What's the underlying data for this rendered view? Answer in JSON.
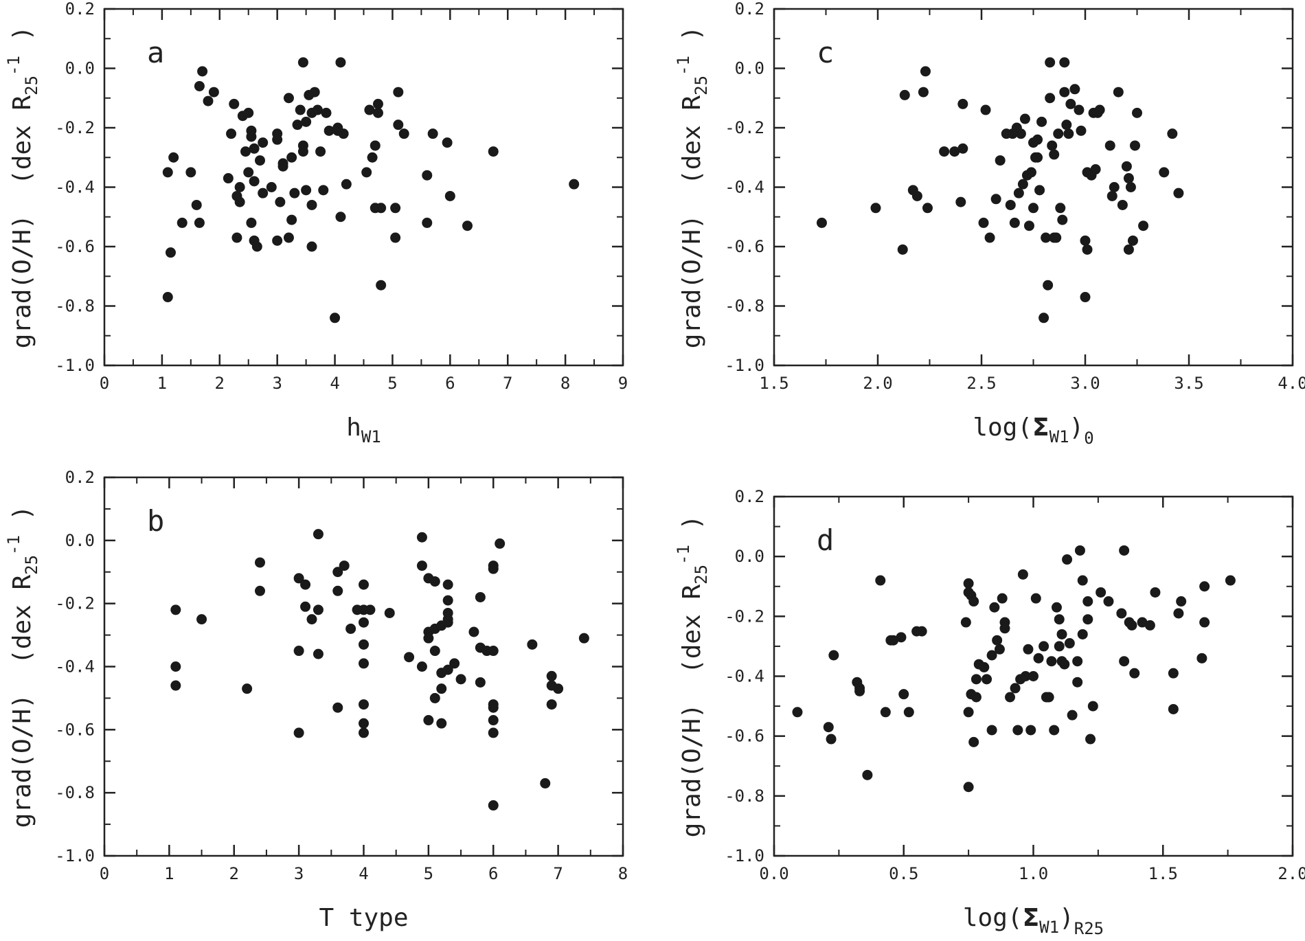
{
  "chart_data": [
    {
      "type": "scatter",
      "panel_label": "a",
      "xlabel": "h",
      "xlabel_sub": "W1",
      "xlabel_close": "",
      "xlabel_outer_sub": "",
      "ylabel": "grad(O/H)  (dex R",
      "ylabel_sub": "25",
      "ylabel_sup": "-1",
      "ylabel_close": ")",
      "xlim": [
        0,
        9
      ],
      "ylim": [
        -1.0,
        0.2
      ],
      "xticks": [
        0,
        1,
        2,
        3,
        4,
        5,
        6,
        7,
        8,
        9
      ],
      "xtick_labels": [
        "0",
        "1",
        "2",
        "3",
        "4",
        "5",
        "6",
        "7",
        "8",
        "9"
      ],
      "yticks": [
        -1.0,
        -0.8,
        -0.6,
        -0.4,
        -0.2,
        0.0,
        0.2
      ],
      "ytick_labels": [
        "-1.0",
        "-0.8",
        "-0.6",
        "-0.4",
        "-0.2",
        "0.0",
        "0.2"
      ],
      "x": [
        1.1,
        1.2,
        1.15,
        1.1,
        1.5,
        1.35,
        1.65,
        1.6,
        1.65,
        1.7,
        1.8,
        1.9,
        2.15,
        2.2,
        2.25,
        2.3,
        2.3,
        2.35,
        2.35,
        2.4,
        2.45,
        2.5,
        2.5,
        2.55,
        2.55,
        2.55,
        2.6,
        2.6,
        2.6,
        2.65,
        2.7,
        2.75,
        2.75,
        2.9,
        3.0,
        3.0,
        3.0,
        3.05,
        3.1,
        3.1,
        3.2,
        3.2,
        3.25,
        3.25,
        3.3,
        3.35,
        3.4,
        3.45,
        3.45,
        3.45,
        3.5,
        3.5,
        3.55,
        3.6,
        3.6,
        3.6,
        3.65,
        3.7,
        3.75,
        3.8,
        3.85,
        3.9,
        4.0,
        4.05,
        4.1,
        4.1,
        4.15,
        4.2,
        4.55,
        4.6,
        4.65,
        4.7,
        4.7,
        4.75,
        4.75,
        4.8,
        4.8,
        5.05,
        5.05,
        5.1,
        5.1,
        5.2,
        5.6,
        5.6,
        5.7,
        5.95,
        6.0,
        6.3,
        6.75,
        8.15,
        4.05
      ],
      "y": [
        -0.35,
        -0.3,
        -0.62,
        -0.77,
        -0.35,
        -0.52,
        -0.06,
        -0.46,
        -0.52,
        -0.01,
        -0.11,
        -0.08,
        -0.37,
        -0.22,
        -0.12,
        -0.57,
        -0.43,
        -0.45,
        -0.4,
        -0.16,
        -0.28,
        -0.15,
        -0.35,
        -0.52,
        -0.21,
        -0.23,
        -0.27,
        -0.38,
        -0.58,
        -0.6,
        -0.31,
        -0.42,
        -0.25,
        -0.4,
        -0.22,
        -0.24,
        -0.58,
        -0.45,
        -0.33,
        -0.32,
        -0.57,
        -0.1,
        -0.51,
        -0.3,
        -0.42,
        -0.19,
        -0.14,
        0.02,
        -0.26,
        -0.28,
        -0.41,
        -0.18,
        -0.09,
        -0.6,
        -0.46,
        -0.15,
        -0.08,
        -0.14,
        -0.28,
        -0.41,
        -0.15,
        -0.21,
        -0.84,
        -0.21,
        0.02,
        -0.5,
        -0.22,
        -0.39,
        -0.35,
        -0.14,
        -0.3,
        -0.26,
        -0.47,
        -0.12,
        -0.15,
        -0.73,
        -0.47,
        -0.57,
        -0.47,
        -0.19,
        -0.08,
        -0.22,
        -0.36,
        -0.52,
        -0.22,
        -0.25,
        -0.43,
        -0.53,
        -0.28,
        -0.39,
        -0.2
      ]
    },
    {
      "type": "scatter",
      "panel_label": "b",
      "xlabel": "T type",
      "xlabel_sub": "",
      "xlabel_close": "",
      "xlabel_outer_sub": "",
      "ylabel": "grad(O/H)  (dex R",
      "ylabel_sub": "25",
      "ylabel_sup": "-1",
      "ylabel_close": ")",
      "xlim": [
        0,
        8
      ],
      "ylim": [
        -1.0,
        0.2
      ],
      "xticks": [
        0,
        1,
        2,
        3,
        4,
        5,
        6,
        7,
        8
      ],
      "xtick_labels": [
        "0",
        "1",
        "2",
        "3",
        "4",
        "5",
        "6",
        "7",
        "8"
      ],
      "yticks": [
        -1.0,
        -0.8,
        -0.6,
        -0.4,
        -0.2,
        0.0,
        0.2
      ],
      "ytick_labels": [
        "-1.0",
        "-0.8",
        "-0.6",
        "-0.4",
        "-0.2",
        "0.0",
        "0.2"
      ],
      "x": [
        1.1,
        1.1,
        1.1,
        1.5,
        2.2,
        2.4,
        2.4,
        3.0,
        3.0,
        3.0,
        3.1,
        3.1,
        3.2,
        3.3,
        3.3,
        3.3,
        3.6,
        3.6,
        3.6,
        3.7,
        3.8,
        3.9,
        4.0,
        4.0,
        4.0,
        4.0,
        4.0,
        4.0,
        4.0,
        4.0,
        4.1,
        4.4,
        4.7,
        4.9,
        4.9,
        4.9,
        5.0,
        5.0,
        5.0,
        5.0,
        5.1,
        5.1,
        5.1,
        5.1,
        5.2,
        5.2,
        5.2,
        5.2,
        5.3,
        5.3,
        5.3,
        5.3,
        5.3,
        5.3,
        5.4,
        5.5,
        5.7,
        5.8,
        5.8,
        5.8,
        5.9,
        6.0,
        6.0,
        6.0,
        6.0,
        6.0,
        6.0,
        6.0,
        6.0,
        6.1,
        6.6,
        6.8,
        6.9,
        6.9,
        6.9,
        7.0,
        7.4
      ],
      "y": [
        -0.22,
        -0.4,
        -0.46,
        -0.25,
        -0.47,
        -0.07,
        -0.16,
        -0.12,
        -0.35,
        -0.61,
        -0.14,
        -0.21,
        -0.25,
        0.02,
        -0.22,
        -0.36,
        -0.16,
        -0.53,
        -0.1,
        -0.08,
        -0.28,
        -0.22,
        -0.14,
        -0.22,
        -0.26,
        -0.33,
        -0.39,
        -0.52,
        -0.58,
        -0.61,
        -0.22,
        -0.23,
        -0.37,
        0.01,
        -0.08,
        -0.4,
        -0.12,
        -0.29,
        -0.31,
        -0.57,
        -0.13,
        -0.28,
        -0.35,
        -0.5,
        -0.27,
        -0.42,
        -0.47,
        -0.58,
        -0.14,
        -0.19,
        -0.23,
        -0.25,
        -0.26,
        -0.41,
        -0.39,
        -0.44,
        -0.29,
        -0.18,
        -0.34,
        -0.45,
        -0.35,
        -0.08,
        -0.09,
        -0.52,
        -0.53,
        -0.57,
        -0.61,
        -0.35,
        -0.84,
        -0.01,
        -0.33,
        -0.77,
        -0.43,
        -0.46,
        -0.52,
        -0.47,
        -0.31
      ]
    },
    {
      "type": "scatter",
      "panel_label": "c",
      "xlabel": "log(",
      "xlabel_sub": "W1",
      "xlabel_close": ")",
      "xlabel_outer_sub": "0",
      "ylabel": "grad(O/H)  (dex R",
      "ylabel_sub": "25",
      "ylabel_sup": "-1",
      "ylabel_close": ")",
      "xlim": [
        1.5,
        4.0
      ],
      "ylim": [
        -1.0,
        0.2
      ],
      "xticks": [
        1.5,
        2.0,
        2.5,
        3.0,
        3.5,
        4.0
      ],
      "xtick_labels": [
        "1.5",
        "2.0",
        "2.5",
        "3.0",
        "3.5",
        "4.0"
      ],
      "yticks": [
        -1.0,
        -0.8,
        -0.6,
        -0.4,
        -0.2,
        0.0,
        0.2
      ],
      "ytick_labels": [
        "-1.0",
        "-0.8",
        "-0.6",
        "-0.4",
        "-0.2",
        "0.0",
        "0.2"
      ],
      "x": [
        1.73,
        1.99,
        2.12,
        2.13,
        2.17,
        2.19,
        2.22,
        2.23,
        2.24,
        2.32,
        2.37,
        2.4,
        2.41,
        2.41,
        2.51,
        2.52,
        2.54,
        2.57,
        2.59,
        2.62,
        2.64,
        2.65,
        2.66,
        2.67,
        2.68,
        2.69,
        2.7,
        2.71,
        2.72,
        2.73,
        2.74,
        2.75,
        2.75,
        2.76,
        2.77,
        2.77,
        2.78,
        2.79,
        2.8,
        2.81,
        2.82,
        2.83,
        2.83,
        2.84,
        2.85,
        2.85,
        2.86,
        2.87,
        2.88,
        2.89,
        2.9,
        2.9,
        2.91,
        2.92,
        2.93,
        2.95,
        2.97,
        2.98,
        3.0,
        3.0,
        3.01,
        3.01,
        3.03,
        3.04,
        3.05,
        3.06,
        3.07,
        3.12,
        3.13,
        3.14,
        3.16,
        3.18,
        3.2,
        3.21,
        3.21,
        3.22,
        3.23,
        3.24,
        3.25,
        3.28,
        3.38,
        3.42,
        3.45
      ],
      "y": [
        -0.52,
        -0.47,
        -0.61,
        -0.09,
        -0.41,
        -0.43,
        -0.08,
        -0.01,
        -0.47,
        -0.28,
        -0.28,
        -0.45,
        -0.12,
        -0.27,
        -0.52,
        -0.14,
        -0.57,
        -0.44,
        -0.31,
        -0.22,
        -0.46,
        -0.22,
        -0.52,
        -0.2,
        -0.42,
        -0.22,
        -0.39,
        -0.17,
        -0.36,
        -0.53,
        -0.35,
        -0.47,
        -0.25,
        -0.3,
        -0.24,
        -0.3,
        -0.41,
        -0.18,
        -0.84,
        -0.57,
        -0.73,
        0.02,
        -0.1,
        -0.26,
        -0.29,
        -0.57,
        -0.57,
        -0.22,
        -0.47,
        -0.51,
        -0.08,
        0.02,
        -0.19,
        -0.22,
        -0.12,
        -0.07,
        -0.14,
        -0.21,
        -0.58,
        -0.77,
        -0.61,
        -0.35,
        -0.36,
        -0.15,
        -0.34,
        -0.15,
        -0.14,
        -0.26,
        -0.43,
        -0.4,
        -0.08,
        -0.46,
        -0.33,
        -0.37,
        -0.61,
        -0.4,
        -0.58,
        -0.26,
        -0.15,
        -0.53,
        -0.35,
        -0.22,
        -0.42
      ]
    },
    {
      "type": "scatter",
      "panel_label": "d",
      "xlabel": "log(",
      "xlabel_sub": "W1",
      "xlabel_close": ")",
      "xlabel_outer_sub": "R25",
      "ylabel": "grad(O/H)  (dex R",
      "ylabel_sub": "25",
      "ylabel_sup": "-1",
      "ylabel_close": ")",
      "xlim": [
        0.0,
        2.0
      ],
      "ylim": [
        -1.0,
        0.2
      ],
      "xticks": [
        0.0,
        0.5,
        1.0,
        1.5,
        2.0
      ],
      "xtick_labels": [
        "0.0",
        "0.5",
        "1.0",
        "1.5",
        "2.0"
      ],
      "yticks": [
        -1.0,
        -0.8,
        -0.6,
        -0.4,
        -0.2,
        0.0,
        0.2
      ],
      "ytick_labels": [
        "-1.0",
        "-0.8",
        "-0.6",
        "-0.4",
        "-0.2",
        "0.0",
        "0.2"
      ],
      "x": [
        0.09,
        0.21,
        0.22,
        0.23,
        0.32,
        0.33,
        0.33,
        0.36,
        0.41,
        0.43,
        0.45,
        0.46,
        0.49,
        0.5,
        0.52,
        0.55,
        0.57,
        0.74,
        0.75,
        0.75,
        0.75,
        0.75,
        0.76,
        0.76,
        0.77,
        0.77,
        0.78,
        0.78,
        0.79,
        0.81,
        0.82,
        0.84,
        0.84,
        0.85,
        0.86,
        0.87,
        0.88,
        0.89,
        0.89,
        0.91,
        0.93,
        0.94,
        0.95,
        0.96,
        0.97,
        0.98,
        0.99,
        1.0,
        1.01,
        1.02,
        1.04,
        1.05,
        1.06,
        1.07,
        1.08,
        1.09,
        1.1,
        1.1,
        1.11,
        1.11,
        1.12,
        1.13,
        1.14,
        1.15,
        1.17,
        1.17,
        1.18,
        1.19,
        1.19,
        1.21,
        1.21,
        1.22,
        1.23,
        1.26,
        1.29,
        1.34,
        1.35,
        1.35,
        1.37,
        1.38,
        1.39,
        1.42,
        1.45,
        1.47,
        1.54,
        1.54,
        1.56,
        1.57,
        1.65,
        1.66,
        1.66,
        1.76
      ],
      "y": [
        -0.52,
        -0.57,
        -0.61,
        -0.33,
        -0.42,
        -0.44,
        -0.45,
        -0.73,
        -0.08,
        -0.52,
        -0.28,
        -0.28,
        -0.27,
        -0.46,
        -0.52,
        -0.25,
        -0.25,
        -0.22,
        -0.09,
        -0.12,
        -0.52,
        -0.77,
        -0.13,
        -0.46,
        -0.15,
        -0.62,
        -0.41,
        -0.47,
        -0.36,
        -0.37,
        -0.41,
        -0.58,
        -0.33,
        -0.17,
        -0.28,
        -0.31,
        -0.14,
        -0.22,
        -0.24,
        -0.47,
        -0.44,
        -0.58,
        -0.41,
        -0.06,
        -0.4,
        -0.31,
        -0.58,
        -0.4,
        -0.14,
        -0.34,
        -0.3,
        -0.47,
        -0.47,
        -0.35,
        -0.58,
        -0.17,
        -0.21,
        -0.3,
        -0.26,
        -0.35,
        -0.36,
        -0.01,
        -0.29,
        -0.53,
        -0.35,
        -0.42,
        0.02,
        -0.26,
        -0.08,
        -0.21,
        -0.15,
        -0.61,
        -0.5,
        -0.12,
        -0.15,
        -0.19,
        -0.35,
        0.02,
        -0.22,
        -0.23,
        -0.39,
        -0.22,
        -0.23,
        -0.12,
        -0.39,
        -0.51,
        -0.19,
        -0.15,
        -0.34,
        -0.22,
        -0.1,
        -0.08
      ]
    }
  ]
}
